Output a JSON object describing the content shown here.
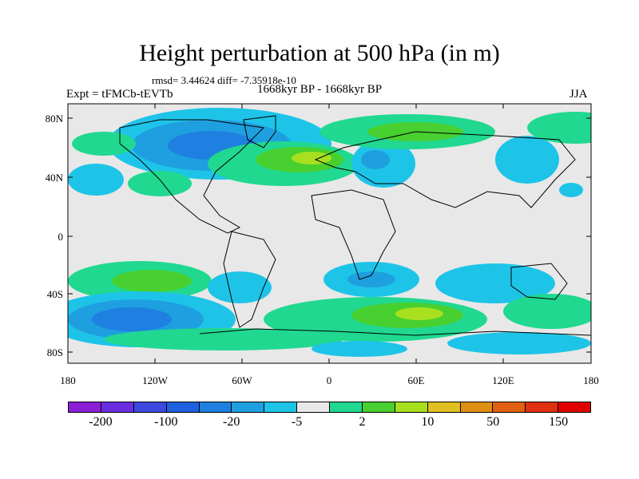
{
  "title": "Height perturbation at 500 hPa (in m)",
  "stats": "rmsd= 3.44624  diff= -7.35918e-10",
  "experiment": "Expt = tFMCb-tEVTb",
  "period": "1668kyr BP - 1668kyr BP",
  "season": "JJA",
  "map": {
    "lat_ticks": [
      "80N",
      "40N",
      "0",
      "40S",
      "80S"
    ],
    "lon_ticks": [
      "180",
      "120W",
      "60W",
      "0",
      "60E",
      "120E",
      "180"
    ],
    "background_color": "#e8e8e8"
  },
  "colorbar": {
    "colors": [
      "#8c1ed7",
      "#6a2ee0",
      "#3d48e0",
      "#1e60e0",
      "#1e80e0",
      "#1ea0e0",
      "#1ec4e8",
      "#e8e8e8",
      "#20d890",
      "#48d030",
      "#a8e020",
      "#e0c020",
      "#e09010",
      "#e06010",
      "#e03010",
      "#e00000"
    ],
    "labels": [
      "-200",
      "-100",
      "-20",
      "-5",
      "2",
      "10",
      "50",
      "150"
    ]
  }
}
